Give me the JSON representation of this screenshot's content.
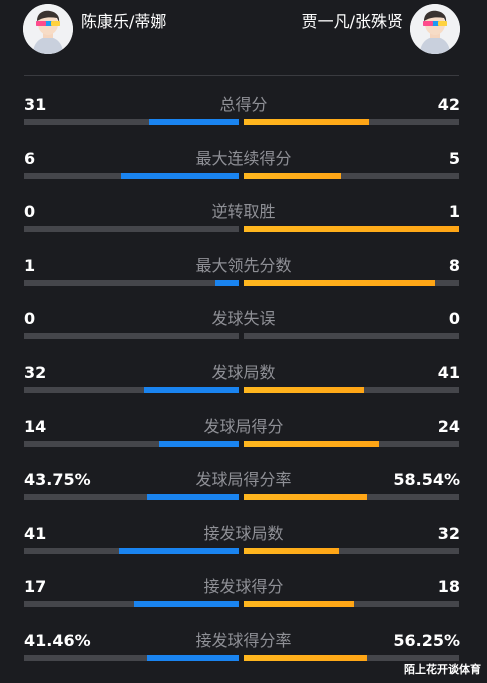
{
  "players": {
    "left": {
      "name": "陈康乐/蒂娜",
      "avatar_icon": "player-avatar-icon"
    },
    "right": {
      "name": "贾一凡/张殊贤",
      "avatar_icon": "player-avatar-icon"
    }
  },
  "colors": {
    "left_bar": "#1a84f0",
    "right_bar": "#ffa516",
    "track": "#45464b",
    "background": "#1b1c20"
  },
  "stats": [
    {
      "label": "总得分",
      "left": "31",
      "right": "42",
      "left_share": 0.42,
      "right_share": 0.58
    },
    {
      "label": "最大连续得分",
      "left": "6",
      "right": "5",
      "left_share": 0.55,
      "right_share": 0.45
    },
    {
      "label": "逆转取胜",
      "left": "0",
      "right": "1",
      "left_share": 0.0,
      "right_share": 1.0
    },
    {
      "label": "最大领先分数",
      "left": "1",
      "right": "8",
      "left_share": 0.11,
      "right_share": 0.89
    },
    {
      "label": "发球失误",
      "left": "0",
      "right": "0",
      "left_share": 0.0,
      "right_share": 0.0
    },
    {
      "label": "发球局数",
      "left": "32",
      "right": "41",
      "left_share": 0.44,
      "right_share": 0.56
    },
    {
      "label": "发球局得分",
      "left": "14",
      "right": "24",
      "left_share": 0.37,
      "right_share": 0.63
    },
    {
      "label": "发球局得分率",
      "left": "43.75%",
      "right": "58.54%",
      "left_share": 0.43,
      "right_share": 0.57
    },
    {
      "label": "接发球局数",
      "left": "41",
      "right": "32",
      "left_share": 0.56,
      "right_share": 0.44
    },
    {
      "label": "接发球得分",
      "left": "17",
      "right": "18",
      "left_share": 0.49,
      "right_share": 0.51
    },
    {
      "label": "接发球得分率",
      "left": "41.46%",
      "right": "56.25%",
      "left_share": 0.43,
      "right_share": 0.57
    }
  ],
  "watermark": "陌上花开谈体育"
}
